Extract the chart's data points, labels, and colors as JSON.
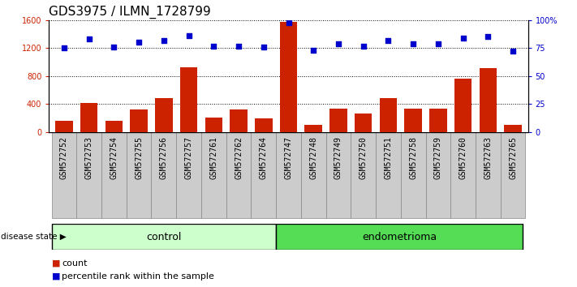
{
  "title": "GDS3975 / ILMN_1728799",
  "categories": [
    "GSM572752",
    "GSM572753",
    "GSM572754",
    "GSM572755",
    "GSM572756",
    "GSM572757",
    "GSM572761",
    "GSM572762",
    "GSM572764",
    "GSM572747",
    "GSM572748",
    "GSM572749",
    "GSM572750",
    "GSM572751",
    "GSM572758",
    "GSM572759",
    "GSM572760",
    "GSM572763",
    "GSM572765"
  ],
  "counts": [
    160,
    420,
    160,
    320,
    480,
    930,
    210,
    320,
    190,
    1570,
    100,
    330,
    260,
    490,
    340,
    340,
    760,
    910,
    100
  ],
  "percentiles": [
    75,
    83,
    76,
    80,
    82,
    86,
    77,
    77,
    76,
    98,
    73,
    79,
    77,
    82,
    79,
    79,
    84,
    85,
    72
  ],
  "n_control": 9,
  "n_endo": 10,
  "ylim_left": [
    0,
    1600
  ],
  "ylim_right": [
    0,
    100
  ],
  "yticks_left": [
    0,
    400,
    800,
    1200,
    1600
  ],
  "yticks_right": [
    0,
    25,
    50,
    75,
    100
  ],
  "ytick_labels_right": [
    "0",
    "25",
    "50",
    "75",
    "100%"
  ],
  "bar_color": "#cc2200",
  "dot_color": "#0000cc",
  "control_color": "#ccffcc",
  "endometrioma_color": "#55dd55",
  "label_bg_color": "#cccccc",
  "disease_state_label": "disease state",
  "control_label": "control",
  "endometrioma_label": "endometrioma",
  "legend_count": "count",
  "legend_percentile": "percentile rank within the sample",
  "title_fontsize": 11,
  "tick_fontsize": 7,
  "bar_width": 0.7
}
